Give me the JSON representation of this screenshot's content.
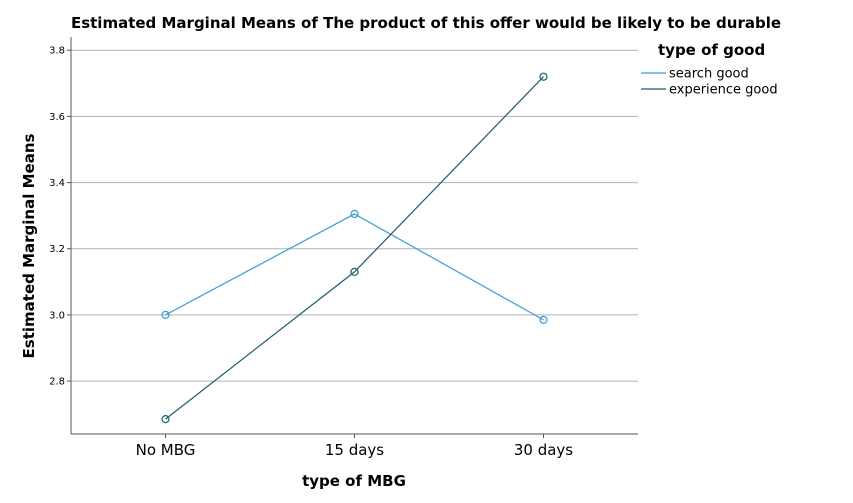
{
  "chart_data": {
    "type": "line",
    "title": "Estimated Marginal Means of The product of this offer would be likely to be durable",
    "xlabel": "type of MBG",
    "ylabel": "Estimated Marginal Means",
    "categories": [
      "No MBG",
      "15 days",
      "30 days"
    ],
    "ylim": [
      2.64,
      3.84
    ],
    "yticks": [
      2.8,
      3.0,
      3.2,
      3.4,
      3.6,
      3.8
    ],
    "ytick_labels": [
      "2.8",
      "3.0",
      "3.2",
      "3.4",
      "3.6",
      "3.8"
    ],
    "grid": true,
    "legend": {
      "title": "type of good",
      "position": "top-right"
    },
    "series": [
      {
        "name": "search good",
        "values": [
          3.0,
          3.305,
          2.985
        ],
        "color": "#3a9ad9"
      },
      {
        "name": "experience good",
        "values": [
          2.685,
          3.13,
          3.72
        ],
        "color": "#1b5e6b"
      }
    ]
  }
}
